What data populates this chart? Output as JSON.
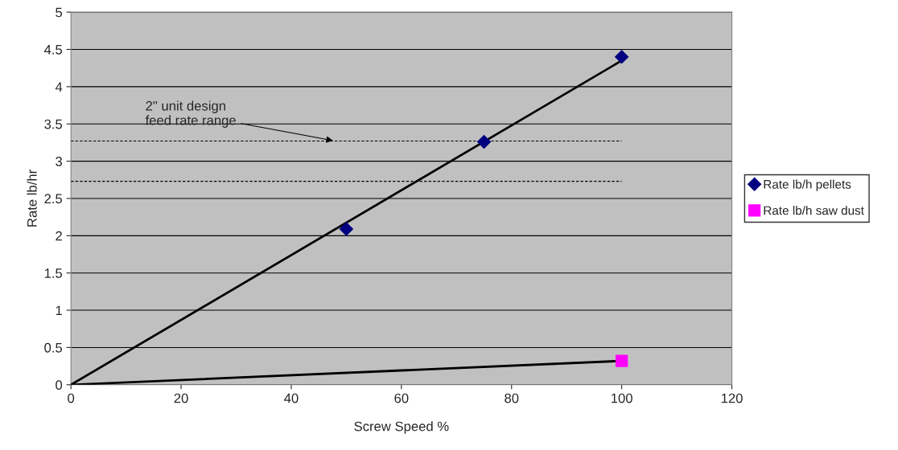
{
  "chart_data": {
    "type": "scatter",
    "xlabel": "Screw Speed %",
    "ylabel": "Rate lb/hr",
    "xlim": [
      0,
      120
    ],
    "xticks": [
      0,
      20,
      40,
      60,
      80,
      100,
      120
    ],
    "ylim": [
      0,
      5
    ],
    "yticks": [
      0,
      0.5,
      1,
      1.5,
      2,
      2.5,
      3,
      3.5,
      4,
      4.5,
      5
    ],
    "grid": "y",
    "legend": "right",
    "series": [
      {
        "name": "Rate lb/h pellets",
        "marker": "diamond",
        "color": "#000080",
        "x": [
          50,
          75,
          100
        ],
        "values": [
          2.09,
          3.26,
          4.4
        ]
      },
      {
        "name": "Rate lb/h saw dust",
        "marker": "square",
        "color": "#ff00ff",
        "x": [
          100
        ],
        "values": [
          0.32
        ]
      },
      {
        "type": "line",
        "color": "#000000",
        "line_style": "solid",
        "x": [
          0,
          100
        ],
        "values": [
          0,
          4.35
        ]
      },
      {
        "type": "line",
        "color": "#000000",
        "line_style": "solid",
        "x": [
          0,
          100
        ],
        "values": [
          0,
          0.32
        ]
      },
      {
        "type": "line",
        "color": "#000000",
        "line_style": "dashed",
        "x": [
          0,
          100
        ],
        "values": [
          3.27,
          3.27
        ]
      },
      {
        "type": "line",
        "color": "#000000",
        "line_style": "dashed",
        "x": [
          0,
          100
        ],
        "values": [
          2.73,
          2.73
        ]
      }
    ],
    "annotations": [
      {
        "text": "2\" unit design\nfeed rate range",
        "x": 48,
        "y": 3.27
      }
    ]
  }
}
